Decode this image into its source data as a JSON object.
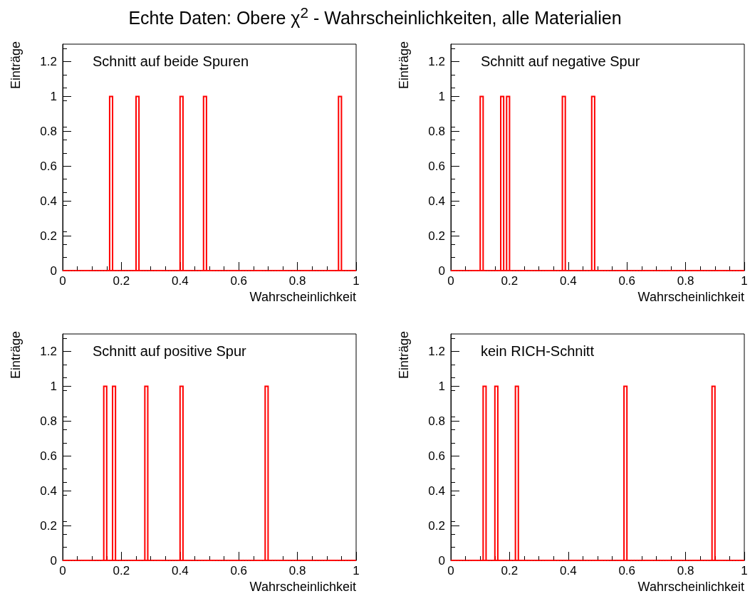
{
  "chart_data": [
    {
      "type": "histogram",
      "title": "Echte Daten: Obere χ$^{2}$ - Wahrscheinlichkeiten, alle Materialien",
      "xlabel": "Wahrscheinlichkeit",
      "ylabel": "Einträge",
      "annotations": [
        "Schnitt auf beide Spuren"
      ],
      "color": "#ff0000",
      "xlim": [
        0,
        1
      ],
      "ylim": [
        0,
        1.3
      ],
      "xticks": [
        0,
        0.2,
        0.4,
        0.6,
        0.8,
        1
      ],
      "yticks": [
        0,
        0.2,
        0.4,
        0.6,
        0.8,
        1,
        1.2
      ],
      "bins": [
        0,
        0.01,
        0.02,
        0.03,
        0.04,
        0.05,
        0.06,
        0.07,
        0.08,
        0.09,
        0.1,
        0.11,
        0.12,
        0.13,
        0.14,
        0.15,
        0.16,
        0.17,
        0.18,
        0.19,
        0.2,
        0.21,
        0.22,
        0.23,
        0.24,
        0.25,
        0.26,
        0.27,
        0.28,
        0.29,
        0.3,
        0.31,
        0.32,
        0.33,
        0.34,
        0.35,
        0.36,
        0.37,
        0.38,
        0.39,
        0.4,
        0.41,
        0.42,
        0.43,
        0.44,
        0.45,
        0.46,
        0.47,
        0.48,
        0.49,
        0.5,
        0.51,
        0.52,
        0.53,
        0.54,
        0.55,
        0.56,
        0.57,
        0.58,
        0.59,
        0.6,
        0.61,
        0.62,
        0.63,
        0.64,
        0.65,
        0.66,
        0.67,
        0.68,
        0.69,
        0.7,
        0.71,
        0.72,
        0.73,
        0.74,
        0.75,
        0.76,
        0.77,
        0.78,
        0.79,
        0.8,
        0.81,
        0.82,
        0.83,
        0.84,
        0.85,
        0.86,
        0.87,
        0.88,
        0.89,
        0.9,
        0.91,
        0.92,
        0.93,
        0.94,
        0.95,
        0.96,
        0.97,
        0.98,
        0.99,
        1
      ],
      "values": [
        0,
        0,
        0,
        0,
        0,
        0,
        0,
        0,
        0,
        0,
        0,
        0,
        0,
        0,
        0,
        0,
        1,
        0,
        0,
        0,
        0,
        0,
        0,
        0,
        0,
        1,
        0,
        0,
        0,
        0,
        0,
        0,
        0,
        0,
        0,
        0,
        0,
        0,
        0,
        0,
        1,
        0,
        0,
        0,
        0,
        0,
        0,
        0,
        1,
        0,
        0,
        0,
        0,
        0,
        0,
        0,
        0,
        0,
        0,
        0,
        0,
        0,
        0,
        0,
        0,
        0,
        0,
        0,
        0,
        0,
        0,
        0,
        0,
        0,
        0,
        0,
        0,
        0,
        0,
        0,
        0,
        0,
        0,
        0,
        0,
        0,
        0,
        0,
        0,
        0,
        0,
        0,
        0,
        0,
        1,
        0,
        0,
        0,
        0,
        0
      ]
    },
    {
      "type": "histogram",
      "xlabel": "Wahrscheinlichkeit",
      "ylabel": "Einträge",
      "annotations": [
        "Schnitt auf negative Spur"
      ],
      "color": "#ff0000",
      "xlim": [
        0,
        1
      ],
      "ylim": [
        0,
        1.3
      ],
      "xticks": [
        0,
        0.2,
        0.4,
        0.6,
        0.8,
        1
      ],
      "yticks": [
        0,
        0.2,
        0.4,
        0.6,
        0.8,
        1,
        1.2
      ],
      "bins": [
        0,
        0.01,
        0.02,
        0.03,
        0.04,
        0.05,
        0.06,
        0.07,
        0.08,
        0.09,
        0.1,
        0.11,
        0.12,
        0.13,
        0.14,
        0.15,
        0.16,
        0.17,
        0.18,
        0.19,
        0.2,
        0.21,
        0.22,
        0.23,
        0.24,
        0.25,
        0.26,
        0.27,
        0.28,
        0.29,
        0.3,
        0.31,
        0.32,
        0.33,
        0.34,
        0.35,
        0.36,
        0.37,
        0.38,
        0.39,
        0.4,
        0.41,
        0.42,
        0.43,
        0.44,
        0.45,
        0.46,
        0.47,
        0.48,
        0.49,
        0.5,
        0.51,
        0.52,
        0.53,
        0.54,
        0.55,
        0.56,
        0.57,
        0.58,
        0.59,
        0.6,
        0.61,
        0.62,
        0.63,
        0.64,
        0.65,
        0.66,
        0.67,
        0.68,
        0.69,
        0.7,
        0.71,
        0.72,
        0.73,
        0.74,
        0.75,
        0.76,
        0.77,
        0.78,
        0.79,
        0.8,
        0.81,
        0.82,
        0.83,
        0.84,
        0.85,
        0.86,
        0.87,
        0.88,
        0.89,
        0.9,
        0.91,
        0.92,
        0.93,
        0.94,
        0.95,
        0.96,
        0.97,
        0.98,
        0.99,
        1
      ],
      "values": [
        0,
        0,
        0,
        0,
        0,
        0,
        0,
        0,
        0,
        0,
        1,
        0,
        0,
        0,
        0,
        0,
        0,
        1,
        0,
        1,
        0,
        0,
        0,
        0,
        0,
        0,
        0,
        0,
        0,
        0,
        0,
        0,
        0,
        0,
        0,
        0,
        0,
        0,
        1,
        0,
        0,
        0,
        0,
        0,
        0,
        0,
        0,
        0,
        1,
        0,
        0,
        0,
        0,
        0,
        0,
        0,
        0,
        0,
        0,
        0,
        0,
        0,
        0,
        0,
        0,
        0,
        0,
        0,
        0,
        0,
        0,
        0,
        0,
        0,
        0,
        0,
        0,
        0,
        0,
        0,
        0,
        0,
        0,
        0,
        0,
        0,
        0,
        0,
        0,
        0,
        0,
        0,
        0,
        0,
        0,
        0,
        0,
        0,
        0,
        0
      ]
    },
    {
      "type": "histogram",
      "xlabel": "Wahrscheinlichkeit",
      "ylabel": "Einträge",
      "annotations": [
        "Schnitt auf positive Spur"
      ],
      "color": "#ff0000",
      "xlim": [
        0,
        1
      ],
      "ylim": [
        0,
        1.3
      ],
      "xticks": [
        0,
        0.2,
        0.4,
        0.6,
        0.8,
        1
      ],
      "yticks": [
        0,
        0.2,
        0.4,
        0.6,
        0.8,
        1,
        1.2
      ],
      "bins": [
        0,
        0.01,
        0.02,
        0.03,
        0.04,
        0.05,
        0.06,
        0.07,
        0.08,
        0.09,
        0.1,
        0.11,
        0.12,
        0.13,
        0.14,
        0.15,
        0.16,
        0.17,
        0.18,
        0.19,
        0.2,
        0.21,
        0.22,
        0.23,
        0.24,
        0.25,
        0.26,
        0.27,
        0.28,
        0.29,
        0.3,
        0.31,
        0.32,
        0.33,
        0.34,
        0.35,
        0.36,
        0.37,
        0.38,
        0.39,
        0.4,
        0.41,
        0.42,
        0.43,
        0.44,
        0.45,
        0.46,
        0.47,
        0.48,
        0.49,
        0.5,
        0.51,
        0.52,
        0.53,
        0.54,
        0.55,
        0.56,
        0.57,
        0.58,
        0.59,
        0.6,
        0.61,
        0.62,
        0.63,
        0.64,
        0.65,
        0.66,
        0.67,
        0.68,
        0.69,
        0.7,
        0.71,
        0.72,
        0.73,
        0.74,
        0.75,
        0.76,
        0.77,
        0.78,
        0.79,
        0.8,
        0.81,
        0.82,
        0.83,
        0.84,
        0.85,
        0.86,
        0.87,
        0.88,
        0.89,
        0.9,
        0.91,
        0.92,
        0.93,
        0.94,
        0.95,
        0.96,
        0.97,
        0.98,
        0.99,
        1
      ],
      "values": [
        0,
        0,
        0,
        0,
        0,
        0,
        0,
        0,
        0,
        0,
        0,
        0,
        0,
        0,
        1,
        0,
        0,
        1,
        0,
        0,
        0,
        0,
        0,
        0,
        0,
        0,
        0,
        0,
        1,
        0,
        0,
        0,
        0,
        0,
        0,
        0,
        0,
        0,
        0,
        0,
        1,
        0,
        0,
        0,
        0,
        0,
        0,
        0,
        0,
        0,
        0,
        0,
        0,
        0,
        0,
        0,
        0,
        0,
        0,
        0,
        0,
        0,
        0,
        0,
        0,
        0,
        0,
        0,
        0,
        1,
        0,
        0,
        0,
        0,
        0,
        0,
        0,
        0,
        0,
        0,
        0,
        0,
        0,
        0,
        0,
        0,
        0,
        0,
        0,
        0,
        0,
        0,
        0,
        0,
        0,
        0,
        0,
        0,
        0,
        0
      ]
    },
    {
      "type": "histogram",
      "xlabel": "Wahrscheinlichkeit",
      "ylabel": "Einträge",
      "annotations": [
        "kein RICH-Schnitt"
      ],
      "color": "#ff0000",
      "xlim": [
        0,
        1
      ],
      "ylim": [
        0,
        1.3
      ],
      "xticks": [
        0,
        0.2,
        0.4,
        0.6,
        0.8,
        1
      ],
      "yticks": [
        0,
        0.2,
        0.4,
        0.6,
        0.8,
        1,
        1.2
      ],
      "bins": [
        0,
        0.01,
        0.02,
        0.03,
        0.04,
        0.05,
        0.06,
        0.07,
        0.08,
        0.09,
        0.1,
        0.11,
        0.12,
        0.13,
        0.14,
        0.15,
        0.16,
        0.17,
        0.18,
        0.19,
        0.2,
        0.21,
        0.22,
        0.23,
        0.24,
        0.25,
        0.26,
        0.27,
        0.28,
        0.29,
        0.3,
        0.31,
        0.32,
        0.33,
        0.34,
        0.35,
        0.36,
        0.37,
        0.38,
        0.39,
        0.4,
        0.41,
        0.42,
        0.43,
        0.44,
        0.45,
        0.46,
        0.47,
        0.48,
        0.49,
        0.5,
        0.51,
        0.52,
        0.53,
        0.54,
        0.55,
        0.56,
        0.57,
        0.58,
        0.59,
        0.6,
        0.61,
        0.62,
        0.63,
        0.64,
        0.65,
        0.66,
        0.67,
        0.68,
        0.69,
        0.7,
        0.71,
        0.72,
        0.73,
        0.74,
        0.75,
        0.76,
        0.77,
        0.78,
        0.79,
        0.8,
        0.81,
        0.82,
        0.83,
        0.84,
        0.85,
        0.86,
        0.87,
        0.88,
        0.89,
        0.9,
        0.91,
        0.92,
        0.93,
        0.94,
        0.95,
        0.96,
        0.97,
        0.98,
        0.99,
        1
      ],
      "values": [
        0,
        0,
        0,
        0,
        0,
        0,
        0,
        0,
        0,
        0,
        0,
        1,
        0,
        0,
        0,
        1,
        0,
        0,
        0,
        0,
        0,
        0,
        1,
        0,
        0,
        0,
        0,
        0,
        0,
        0,
        0,
        0,
        0,
        0,
        0,
        0,
        0,
        0,
        0,
        0,
        0,
        0,
        0,
        0,
        0,
        0,
        0,
        0,
        0,
        0,
        0,
        0,
        0,
        0,
        0,
        0,
        0,
        0,
        0,
        1,
        0,
        0,
        0,
        0,
        0,
        0,
        0,
        0,
        0,
        0,
        0,
        0,
        0,
        0,
        0,
        0,
        0,
        0,
        0,
        0,
        0,
        0,
        0,
        0,
        0,
        0,
        0,
        0,
        0,
        1,
        0,
        0,
        0,
        0,
        0,
        0,
        0,
        0,
        0,
        0
      ]
    }
  ]
}
